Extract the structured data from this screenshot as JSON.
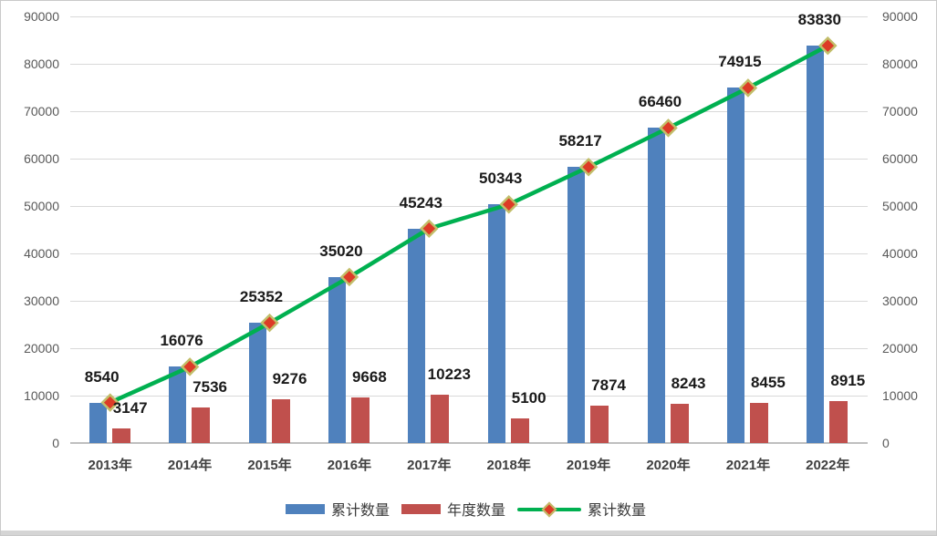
{
  "chart_data": {
    "type": "bar",
    "subtype": "combo-bar-line",
    "title": "",
    "xlabel": "",
    "ylabel": "",
    "categories": [
      "2013年",
      "2014年",
      "2015年",
      "2016年",
      "2017年",
      "2018年",
      "2019年",
      "2020年",
      "2021年",
      "2022年"
    ],
    "series": [
      {
        "name": "累计数量",
        "type": "bar",
        "color": "#4F81BD",
        "values": [
          8540,
          16076,
          25352,
          35020,
          45243,
          50343,
          58217,
          66460,
          74915,
          83830
        ]
      },
      {
        "name": "年度数量",
        "type": "bar",
        "color": "#C0504D",
        "values": [
          3147,
          7536,
          9276,
          9668,
          10223,
          5100,
          7874,
          8243,
          8455,
          8915
        ]
      },
      {
        "name": "累计数量",
        "type": "line",
        "color": "#00B050",
        "marker_shape": "diamond",
        "marker_fill": "#DD3B27",
        "marker_border": "#C2BE6A",
        "values": [
          8540,
          16076,
          25352,
          35020,
          45243,
          50343,
          58217,
          66460,
          74915,
          83830
        ]
      }
    ],
    "ylim": [
      0,
      90000
    ],
    "ytick_step": 10000,
    "yticks": [
      "0",
      "10000",
      "20000",
      "30000",
      "40000",
      "50000",
      "60000",
      "70000",
      "80000",
      "90000"
    ],
    "secondary_y_axis": true,
    "grid": true,
    "legend_position": "bottom",
    "data_labels_shown": true
  },
  "legend": {
    "items": [
      {
        "label": "累计数量",
        "swatch": "blue-bar"
      },
      {
        "label": "年度数量",
        "swatch": "red-bar"
      },
      {
        "label": "累计数量",
        "swatch": "green-line-red-diamond"
      }
    ]
  },
  "colors": {
    "gridline": "#D9D9D9",
    "axis_line": "#BFBFBF",
    "tick_label": "#595959",
    "x_label": "#404040",
    "data_label": "#1A1A1A",
    "canvas_border": "#C9C9C9",
    "bottom_edge_band": "#D5D5D5"
  }
}
